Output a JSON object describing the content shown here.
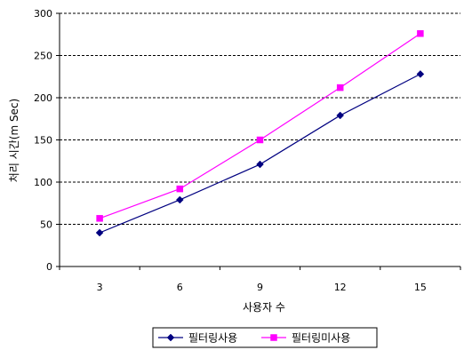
{
  "chart_data": {
    "type": "line",
    "title": "",
    "xlabel": "사용자 수",
    "ylabel": "처리 시간(m Sec)",
    "categories": [
      "3",
      "6",
      "9",
      "12",
      "15"
    ],
    "ylim": [
      0,
      300
    ],
    "yticks": [
      0,
      50,
      100,
      150,
      200,
      250,
      300
    ],
    "grid": "horizontal dashed",
    "legend_position": "bottom",
    "series": [
      {
        "name": "필터링사용",
        "values": [
          40,
          79,
          121,
          179,
          228
        ],
        "color": "#000080",
        "marker": "diamond"
      },
      {
        "name": "필터링미사용",
        "values": [
          57,
          92,
          150,
          212,
          276
        ],
        "color": "#FF00FF",
        "marker": "square"
      }
    ]
  }
}
